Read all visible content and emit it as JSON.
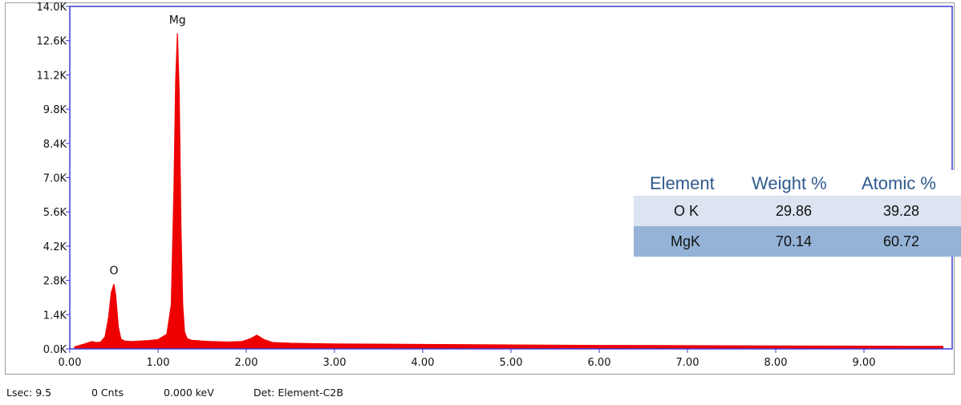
{
  "chart_data": {
    "type": "line",
    "title": "",
    "xlabel": "",
    "ylabel": "",
    "xlim": [
      0.0,
      10.0
    ],
    "ylim": [
      0,
      14000
    ],
    "x_ticks": [
      "0.00",
      "1.00",
      "2.00",
      "3.00",
      "4.00",
      "5.00",
      "6.00",
      "7.00",
      "8.00",
      "9.00"
    ],
    "y_ticks": [
      "0.0K",
      "1.4K",
      "2.8K",
      "4.2K",
      "5.6K",
      "7.0K",
      "8.4K",
      "9.8K",
      "11.2K",
      "12.6K",
      "14.0K"
    ],
    "series": [
      {
        "x": [
          0.05,
          0.15,
          0.25,
          0.3,
          0.35,
          0.4,
          0.44,
          0.47,
          0.5,
          0.52,
          0.55,
          0.58,
          0.62,
          0.7,
          0.8,
          0.9,
          1.0,
          1.1,
          1.15,
          1.18,
          1.2,
          1.22,
          1.24,
          1.26,
          1.28,
          1.3,
          1.33,
          1.38,
          1.45,
          1.6,
          1.8,
          1.95,
          2.05,
          2.12,
          2.2,
          2.3,
          2.5,
          3.0,
          4.0,
          5.0,
          6.0,
          7.0,
          8.0,
          9.0,
          9.9
        ],
        "values": [
          80,
          180,
          300,
          260,
          280,
          500,
          1300,
          2300,
          2650,
          2200,
          900,
          400,
          320,
          300,
          320,
          340,
          380,
          600,
          1800,
          6500,
          11000,
          12900,
          10500,
          5000,
          1800,
          700,
          420,
          350,
          330,
          300,
          280,
          300,
          420,
          560,
          380,
          260,
          230,
          200,
          180,
          160,
          140,
          130,
          120,
          110,
          100
        ]
      }
    ],
    "line_color": "#ee0000",
    "fill": true,
    "annotations": [
      {
        "text": "O",
        "x": 0.5,
        "y": 2650
      },
      {
        "text": "Mg",
        "x": 1.22,
        "y": 12900
      }
    ],
    "grid": false
  },
  "colors": {
    "plot_border": "#3b3bd6",
    "spectrum": "#ee0000",
    "table_header_text": "#2f5a8e",
    "table_row_light": "#dbe4f0",
    "table_row_dark": "#95b3d7"
  },
  "results_table": {
    "headers": [
      "Element",
      "Weight %",
      "Atomic %"
    ],
    "rows": [
      {
        "element": "O K",
        "weight": "29.86",
        "atomic": "39.28"
      },
      {
        "element": "MgK",
        "weight": "70.14",
        "atomic": "60.72"
      }
    ]
  },
  "status": {
    "lsec": "Lsec: 9.5",
    "cnts": "0 Cnts",
    "kev": "0.000 keV",
    "det": "Det: Element-C2B"
  }
}
